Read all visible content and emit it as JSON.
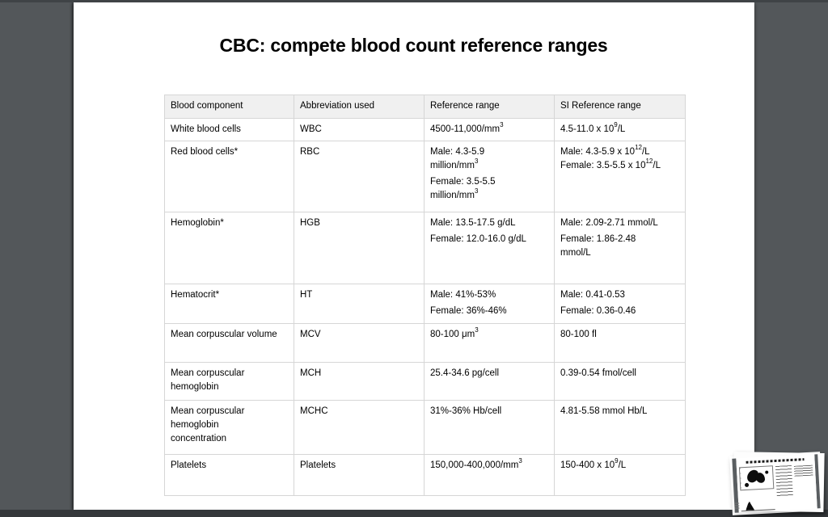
{
  "slide": {
    "title": "CBC: compete blood count reference ranges"
  },
  "table": {
    "columns": [
      "Blood component",
      "Abbreviation used",
      "Reference range",
      "SI Reference range"
    ],
    "rows": [
      [
        [
          [
            "White blood cells"
          ]
        ],
        [
          [
            "WBC"
          ]
        ],
        [
          [
            "4500-11,000/mm^{3}"
          ]
        ],
        [
          [
            "4.5-11.0 x 10^{9}/L"
          ]
        ]
      ],
      [
        [
          [
            "Red blood cells*"
          ]
        ],
        [
          [
            "RBC"
          ]
        ],
        [
          [
            "Male: 4.3-5.9",
            "million/mm^{3}"
          ],
          [
            "Female: 3.5-5.5",
            "million/mm^{3}"
          ]
        ],
        [
          [
            "Male: 4.3-5.9 x 10^{12}/L",
            "Female: 3.5-5.5 x 10^{12}/L"
          ]
        ]
      ],
      [
        [
          [
            "Hemoglobin*"
          ]
        ],
        [
          [
            "HGB"
          ]
        ],
        [
          [
            "Male: 13.5-17.5 g/dL"
          ],
          [
            "Female: 12.0-16.0 g/dL"
          ]
        ],
        [
          [
            "Male: 2.09-2.71 mmol/L"
          ],
          [
            "Female: 1.86-2.48",
            "mmol/L"
          ]
        ]
      ],
      [
        [
          [
            "Hematocrit*"
          ]
        ],
        [
          [
            "HT"
          ]
        ],
        [
          [
            "Male: 41%-53%"
          ],
          [
            "Female: 36%-46%"
          ]
        ],
        [
          [
            "Male: 0.41-0.53"
          ],
          [
            "Female: 0.36-0.46"
          ]
        ]
      ],
      [
        [
          [
            "Mean corpuscular volume"
          ]
        ],
        [
          [
            "MCV"
          ]
        ],
        [
          [
            "80-100 μm^{3}"
          ]
        ],
        [
          [
            "80-100 fl"
          ]
        ]
      ],
      [
        [
          [
            "Mean corpuscular",
            "hemoglobin"
          ]
        ],
        [
          [
            "MCH"
          ]
        ],
        [
          [
            "25.4-34.6 pg/cell"
          ]
        ],
        [
          [
            "0.39-0.54 fmol/cell"
          ]
        ]
      ],
      [
        [
          [
            "Mean corpuscular",
            "hemoglobin",
            "concentration"
          ]
        ],
        [
          [
            "MCHC"
          ]
        ],
        [
          [
            "31%-36% Hb/cell"
          ]
        ],
        [
          [
            "4.81-5.58 mmol Hb/L"
          ]
        ]
      ],
      [
        [
          [
            "Platelets"
          ]
        ],
        [
          [
            "Platelets"
          ]
        ],
        [
          [
            "150,000-400,000/mm^{3}"
          ]
        ],
        [
          [
            "150-400 x 10^{9}/L"
          ]
        ]
      ]
    ]
  },
  "colors": {
    "background": "#53575a",
    "header_fill": "#f0f0f0",
    "table_border": "#d6d6d6",
    "text": "#000000"
  }
}
